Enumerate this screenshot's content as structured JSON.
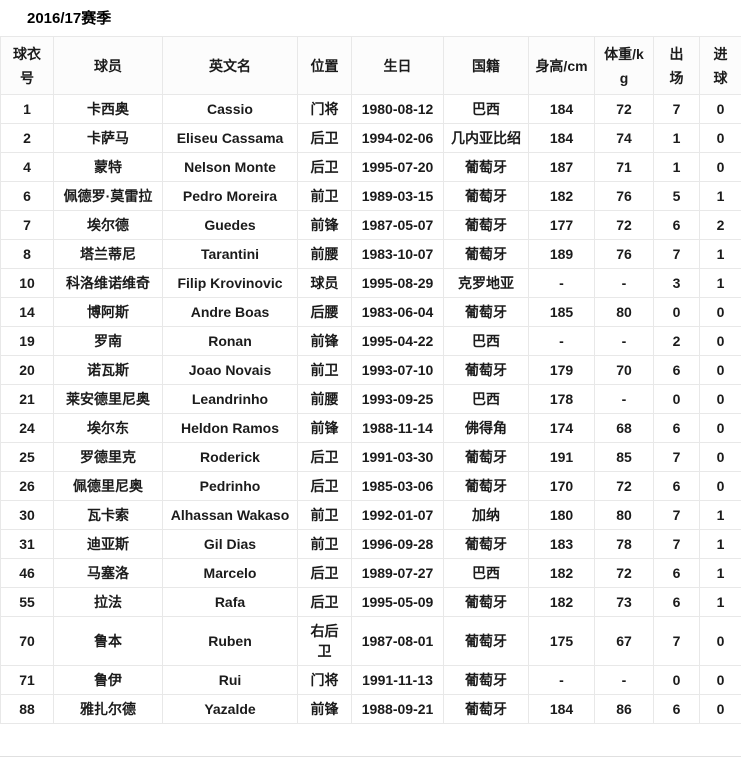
{
  "page": {
    "title": "2016/17赛季"
  },
  "colors": {
    "text": "#1b1b1b",
    "border": "#e8e8e8",
    "divider": "#e0e0e0",
    "header_bg": "#fcfcfc"
  },
  "table": {
    "columns": [
      {
        "key": "jersey_number",
        "label": "球衣\n号"
      },
      {
        "key": "player",
        "label": "球员"
      },
      {
        "key": "english_name",
        "label": "英文名"
      },
      {
        "key": "position",
        "label": "位置"
      },
      {
        "key": "birthday",
        "label": "生日"
      },
      {
        "key": "nationality",
        "label": "国籍"
      },
      {
        "key": "height_cm",
        "label": "身高/cm"
      },
      {
        "key": "weight_kg",
        "label": "体重/k\ng"
      },
      {
        "key": "appearances",
        "label": "出\n场"
      },
      {
        "key": "goals",
        "label": "进\n球"
      }
    ],
    "rows": [
      [
        "1",
        "卡西奥",
        "Cassio",
        "门将",
        "1980-08-12",
        "巴西",
        "184",
        "72",
        "7",
        "0"
      ],
      [
        "2",
        "卡萨马",
        "Eliseu Cassama",
        "后卫",
        "1994-02-06",
        "几内亚比绍",
        "184",
        "74",
        "1",
        "0"
      ],
      [
        "4",
        "蒙特",
        "Nelson Monte",
        "后卫",
        "1995-07-20",
        "葡萄牙",
        "187",
        "71",
        "1",
        "0"
      ],
      [
        "6",
        "佩德罗·莫雷拉",
        "Pedro Moreira",
        "前卫",
        "1989-03-15",
        "葡萄牙",
        "182",
        "76",
        "5",
        "1"
      ],
      [
        "7",
        "埃尔德",
        "Guedes",
        "前锋",
        "1987-05-07",
        "葡萄牙",
        "177",
        "72",
        "6",
        "2"
      ],
      [
        "8",
        "塔兰蒂尼",
        "Tarantini",
        "前腰",
        "1983-10-07",
        "葡萄牙",
        "189",
        "76",
        "7",
        "1"
      ],
      [
        "10",
        "科洛维诺维奇",
        "Filip Krovinovic",
        "球员",
        "1995-08-29",
        "克罗地亚",
        "-",
        "-",
        "3",
        "1"
      ],
      [
        "14",
        "博阿斯",
        "Andre Boas",
        "后腰",
        "1983-06-04",
        "葡萄牙",
        "185",
        "80",
        "0",
        "0"
      ],
      [
        "19",
        "罗南",
        "Ronan",
        "前锋",
        "1995-04-22",
        "巴西",
        "-",
        "-",
        "2",
        "0"
      ],
      [
        "20",
        "诺瓦斯",
        "Joao Novais",
        "前卫",
        "1993-07-10",
        "葡萄牙",
        "179",
        "70",
        "6",
        "0"
      ],
      [
        "21",
        "莱安德里尼奥",
        "Leandrinho",
        "前腰",
        "1993-09-25",
        "巴西",
        "178",
        "-",
        "0",
        "0"
      ],
      [
        "24",
        "埃尔东",
        "Heldon Ramos",
        "前锋",
        "1988-11-14",
        "佛得角",
        "174",
        "68",
        "6",
        "0"
      ],
      [
        "25",
        "罗德里克",
        "Roderick",
        "后卫",
        "1991-03-30",
        "葡萄牙",
        "191",
        "85",
        "7",
        "0"
      ],
      [
        "26",
        "佩德里尼奥",
        "Pedrinho",
        "后卫",
        "1985-03-06",
        "葡萄牙",
        "170",
        "72",
        "6",
        "0"
      ],
      [
        "30",
        "瓦卡索",
        "Alhassan Wakaso",
        "前卫",
        "1992-01-07",
        "加纳",
        "180",
        "80",
        "7",
        "1"
      ],
      [
        "31",
        "迪亚斯",
        "Gil Dias",
        "前卫",
        "1996-09-28",
        "葡萄牙",
        "183",
        "78",
        "7",
        "1"
      ],
      [
        "46",
        "马塞洛",
        "Marcelo",
        "后卫",
        "1989-07-27",
        "巴西",
        "182",
        "72",
        "6",
        "1"
      ],
      [
        "55",
        "拉法",
        "Rafa",
        "后卫",
        "1995-05-09",
        "葡萄牙",
        "182",
        "73",
        "6",
        "1"
      ],
      [
        "70",
        "鲁本",
        "Ruben",
        "右后\n卫",
        "1987-08-01",
        "葡萄牙",
        "175",
        "67",
        "7",
        "0"
      ],
      [
        "71",
        "鲁伊",
        "Rui",
        "门将",
        "1991-11-13",
        "葡萄牙",
        "-",
        "-",
        "0",
        "0"
      ],
      [
        "88",
        "雅扎尔德",
        "Yazalde",
        "前锋",
        "1988-09-21",
        "葡萄牙",
        "184",
        "86",
        "6",
        "0"
      ]
    ]
  }
}
